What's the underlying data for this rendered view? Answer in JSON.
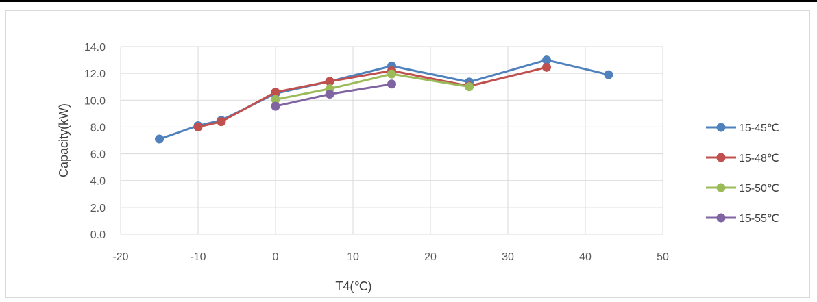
{
  "chart_data": {
    "type": "line",
    "title": "",
    "xlabel": "T4(℃)",
    "ylabel": "Capacity(kW)",
    "xlim": [
      -20,
      50
    ],
    "ylim": [
      0,
      14
    ],
    "x_ticks": [
      "-20",
      "-10",
      "0",
      "10",
      "20",
      "30",
      "40",
      "50"
    ],
    "y_ticks": [
      "0.0",
      "2.0",
      "4.0",
      "6.0",
      "8.0",
      "10.0",
      "12.0",
      "14.0"
    ],
    "grid": "vertical and horizontal",
    "legend_position": "right",
    "series": [
      {
        "name": "15-45℃",
        "color": "#4f81bd",
        "points": [
          [
            -15,
            7.1
          ],
          [
            -10,
            8.1
          ],
          [
            -7,
            8.5
          ],
          [
            0,
            10.5
          ],
          [
            7,
            11.4
          ],
          [
            15,
            12.55
          ],
          [
            25,
            11.35
          ],
          [
            35,
            13.0
          ],
          [
            43,
            11.9
          ]
        ]
      },
      {
        "name": "15-48℃",
        "color": "#c0504d",
        "points": [
          [
            -10,
            8.0
          ],
          [
            -7,
            8.4
          ],
          [
            0,
            10.6
          ],
          [
            7,
            11.4
          ],
          [
            15,
            12.2
          ],
          [
            25,
            11.05
          ],
          [
            35,
            12.45
          ]
        ]
      },
      {
        "name": "15-50℃",
        "color": "#9bbb59",
        "points": [
          [
            0,
            10.05
          ],
          [
            7,
            10.85
          ],
          [
            15,
            11.95
          ],
          [
            25,
            11.0
          ]
        ]
      },
      {
        "name": "15-55℃",
        "color": "#8064a2",
        "points": [
          [
            0,
            9.55
          ],
          [
            7,
            10.45
          ],
          [
            15,
            11.2
          ]
        ]
      }
    ]
  }
}
